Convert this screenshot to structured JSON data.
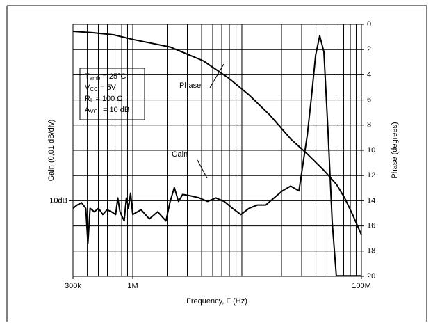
{
  "chart_data": {
    "type": "line",
    "x_label": "Frequency, F (Hz)",
    "y_label": "Gain (0,01 dB/div)",
    "y2_label": "Phase (degrees)",
    "xscale": "log",
    "xlim": [
      300000,
      100000000
    ],
    "xticks": [
      {
        "value": 300000,
        "label": "300k"
      },
      {
        "value": 1000000,
        "label": "1M"
      },
      {
        "value": 100000000,
        "label": "100M"
      }
    ],
    "xgrid": [
      400000,
      500000,
      600000,
      700000,
      800000,
      900000,
      2000000,
      3000000,
      4000000,
      5000000,
      6000000,
      7000000,
      8000000,
      9000000,
      20000000,
      30000000,
      40000000,
      50000000,
      60000000,
      70000000,
      80000000,
      90000000
    ],
    "ylim": [
      9.97,
      10.07
    ],
    "yticks": [
      {
        "value": 10,
        "label": "10dB"
      }
    ],
    "y2lim": [
      20,
      0
    ],
    "y2ticks": [
      0,
      2,
      4,
      6,
      8,
      10,
      12,
      14,
      16,
      18,
      20
    ],
    "grid": true,
    "conditions": [
      {
        "main": "T",
        "sub": "amb",
        "rest": " = 25°C"
      },
      {
        "main": "V",
        "sub": "CC",
        "rest": " =  5V"
      },
      {
        "main": "R",
        "sub": "L",
        "rest": " = 100 Ω"
      },
      {
        "main": "A",
        "sub": "VCL",
        "rest": " = 10 dB"
      }
    ],
    "series": [
      {
        "name": "Gain",
        "color": "#000000",
        "x": [
          300000,
          326900,
          356300,
          388300,
          405300,
          423100,
          461100,
          502500,
          547600,
          596800,
          650400,
          708800,
          740100,
          772500,
          841900,
          879000,
          917500,
          957900,
          1000000,
          1182000,
          1398000,
          1652000,
          1953000,
          2124000,
          2309000,
          2512000,
          2730000,
          3228000,
          3816000,
          4511000,
          5333000,
          6305000,
          7453000,
          8811000,
          10420000,
          12320000,
          14560000,
          17210000,
          20350000,
          24050000,
          28430000,
          33610000,
          36540000,
          39730000,
          43200000,
          46970000,
          51070000,
          55520000,
          60370000,
          71360000,
          100000000
        ],
        "values": [
          9.997,
          9.9983,
          9.9992,
          9.997,
          9.9831,
          9.997,
          9.9956,
          9.997,
          9.9945,
          9.9964,
          9.9956,
          9.9945,
          10.0011,
          9.9956,
          9.992,
          10.0011,
          9.997,
          10.003,
          9.9945,
          9.9964,
          9.9928,
          9.9956,
          9.992,
          9.9997,
          10.0052,
          9.9997,
          10.0025,
          10.0019,
          10.0011,
          9.9997,
          10.0011,
          9.9997,
          9.997,
          9.9945,
          9.997,
          9.9983,
          9.9983,
          10.0011,
          10.0039,
          10.0058,
          10.0039,
          10.026,
          10.0412,
          10.0577,
          10.0655,
          10.0591,
          10.0273,
          9.9914,
          9.9702,
          9.9702,
          9.9702
        ]
      },
      {
        "name": "Phase",
        "color": "#000000",
        "axis": "y2",
        "x": [
          300000,
          441000,
          679000,
          1000000,
          2130000,
          4150000,
          6860000,
          10400000,
          15800000,
          24100000,
          33700000,
          47100000,
          60500000,
          71600000,
          84600000,
          100000000
        ],
        "values": [
          0.55,
          0.66,
          0.83,
          1.2,
          1.8,
          2.9,
          4.25,
          5.6,
          7.2,
          9.1,
          10.3,
          11.6,
          12.7,
          13.8,
          15.2,
          16.7
        ]
      }
    ]
  }
}
